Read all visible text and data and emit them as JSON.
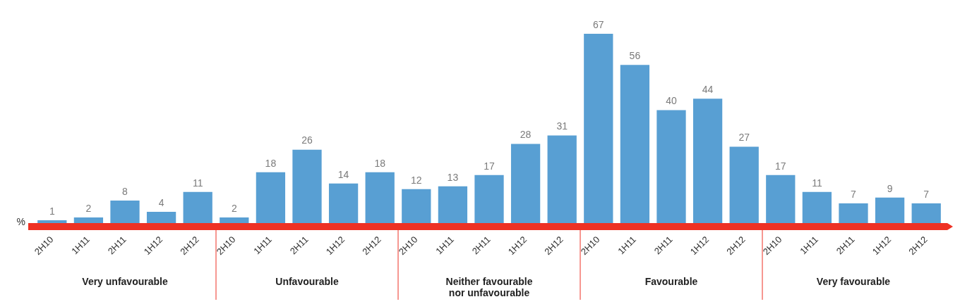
{
  "chart_data": {
    "type": "bar",
    "ylabel": "%",
    "categories": [
      "2H10",
      "1H11",
      "2H11",
      "1H12",
      "2H12",
      "2H10",
      "1H11",
      "2H11",
      "1H12",
      "2H12",
      "2H10",
      "1H11",
      "2H11",
      "1H12",
      "2H12",
      "2H10",
      "1H11",
      "2H11",
      "1H12",
      "2H12",
      "2H10",
      "1H11",
      "2H11",
      "1H12",
      "2H12"
    ],
    "values": [
      1,
      2,
      8,
      4,
      11,
      2,
      18,
      26,
      14,
      18,
      12,
      13,
      17,
      28,
      31,
      67,
      56,
      40,
      44,
      27,
      17,
      11,
      7,
      9,
      7
    ],
    "color": "#589fd3",
    "data_labels": true,
    "grid": false,
    "legend": false,
    "annotations": [
      "Very unfavourable",
      "Unfavourable",
      "Neither favourable nor unfavourable",
      "Favourable",
      "Very favourable"
    ]
  }
}
